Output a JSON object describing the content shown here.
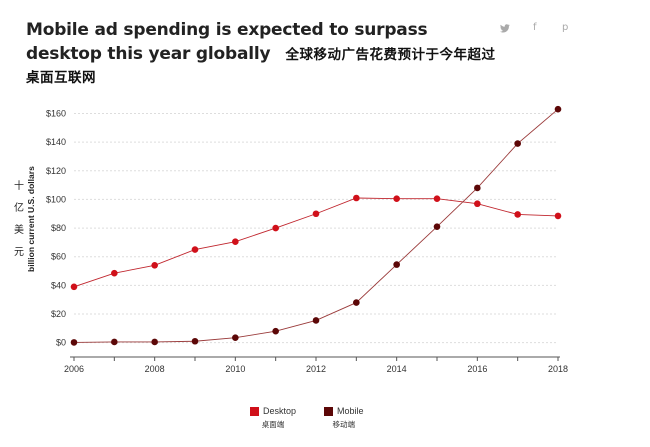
{
  "header": {
    "title_en": "Mobile ad spending is expected to surpass desktop this year globally",
    "title_zh": "全球移动广告花费预计于今年超过桌面互联网"
  },
  "share": {
    "twitter_icon": "twitter-icon",
    "facebook_icon": "facebook-icon",
    "pinterest_icon": "pinterest-icon",
    "twitter_glyph": "•",
    "facebook_glyph": "f",
    "pinterest_glyph": "p"
  },
  "colors": {
    "desktop": "#d0101a",
    "mobile": "#5c0707",
    "grid": "#dddddd",
    "axis": "#555555"
  },
  "chart_data": {
    "type": "line",
    "x": [
      2006,
      2007,
      2008,
      2009,
      2010,
      2011,
      2012,
      2013,
      2014,
      2015,
      2016,
      2017,
      2018
    ],
    "series": [
      {
        "name": "Desktop",
        "name_zh": "桌面端",
        "values": [
          39,
          48.5,
          54,
          65,
          70.5,
          80,
          90,
          101,
          100.5,
          100.5,
          97,
          89.5,
          88.5
        ]
      },
      {
        "name": "Mobile",
        "name_zh": "移动端",
        "values": [
          0.2,
          0.5,
          0.5,
          1,
          3.5,
          8,
          15.5,
          28,
          54.5,
          81,
          108,
          139,
          163
        ]
      }
    ],
    "title": "",
    "ylabel": "billion current U.S. dollars",
    "ylabel_zh": "十亿美元",
    "xlim": [
      2006,
      2018
    ],
    "ylim": [
      -10,
      175
    ],
    "yticks": [
      0,
      20,
      40,
      60,
      80,
      100,
      120,
      140,
      160
    ],
    "ytick_labels": [
      "$0",
      "$20",
      "$40",
      "$60",
      "$80",
      "$100",
      "$120",
      "$140",
      "$160"
    ],
    "xticks": [
      2006,
      2008,
      2010,
      2012,
      2014,
      2016,
      2018
    ],
    "grid": true,
    "legend_position": "bottom-center"
  }
}
